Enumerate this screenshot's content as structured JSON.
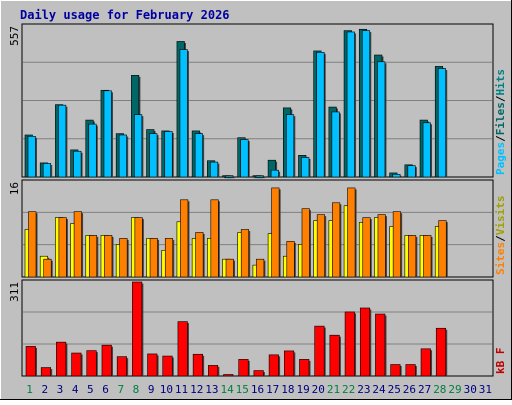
{
  "title": "Daily usage for February 2026",
  "colors": {
    "frame_bg": "#c0c0c0",
    "plot_bg": "#c0c0c0",
    "title_text": "#0000a0",
    "hits": "#00cccc",
    "hits_label": "#008080",
    "files": "#006666",
    "pages": "#00c0ff",
    "visits": "#ffff00",
    "visits_label": "#a0a000",
    "sites": "#ff8000",
    "kbytes": "#ff0000",
    "kbytes_label": "#c00000",
    "weekend_day": "#008040",
    "weekday": "#000080"
  },
  "panel_labels": {
    "top": [
      "Pages",
      "Files",
      "Hits"
    ],
    "middle": [
      "Sites",
      "Visits"
    ],
    "bottom": [
      "kB F"
    ],
    "separator": "/"
  },
  "chart_data": [
    {
      "type": "bar",
      "panel": "hits-files-pages",
      "ymax_label": "557",
      "ylim": [
        0,
        557
      ],
      "categories": [
        "1",
        "2",
        "3",
        "4",
        "5",
        "6",
        "7",
        "8",
        "9",
        "10",
        "11",
        "12",
        "13",
        "14",
        "15",
        "16",
        "17",
        "18",
        "19",
        "20",
        "21",
        "22",
        "23",
        "24",
        "25",
        "26",
        "27",
        "28",
        "29",
        "30",
        "31"
      ],
      "series": [
        {
          "name": "Hits",
          "values": [
            155,
            52,
            267,
            100,
            210,
            320,
            160,
            375,
            175,
            170,
            500,
            170,
            60,
            5,
            145,
            5,
            62,
            255,
            80,
            465,
            258,
            540,
            545,
            450,
            15,
            45,
            210,
            408,
            0,
            0,
            0
          ]
        },
        {
          "name": "Files",
          "values": [
            155,
            52,
            267,
            100,
            210,
            320,
            160,
            375,
            175,
            170,
            500,
            170,
            60,
            5,
            145,
            5,
            62,
            255,
            80,
            465,
            258,
            540,
            545,
            450,
            15,
            45,
            210,
            408,
            0,
            0,
            0
          ]
        },
        {
          "name": "Pages",
          "values": [
            150,
            50,
            265,
            95,
            195,
            318,
            155,
            230,
            160,
            168,
            470,
            160,
            55,
            5,
            138,
            5,
            25,
            230,
            72,
            460,
            240,
            535,
            540,
            425,
            10,
            42,
            200,
            400,
            0,
            0,
            0
          ]
        }
      ]
    },
    {
      "type": "bar",
      "panel": "visits-sites",
      "ymax_label": "16",
      "ylim": [
        0,
        16
      ],
      "categories": [
        "1",
        "2",
        "3",
        "4",
        "5",
        "6",
        "7",
        "8",
        "9",
        "10",
        "11",
        "12",
        "13",
        "14",
        "15",
        "16",
        "17",
        "18",
        "19",
        "20",
        "21",
        "22",
        "23",
        "24",
        "25",
        "26",
        "27",
        "28",
        "29",
        "30",
        "31"
      ],
      "series": [
        {
          "name": "Visits",
          "values": [
            8,
            3.5,
            10,
            9,
            7,
            7,
            5.5,
            10,
            6.5,
            4.5,
            9.3,
            6.5,
            6.5,
            3,
            7.5,
            2,
            7.3,
            3.5,
            5.5,
            9.5,
            9.5,
            12,
            9.2,
            10,
            8.5,
            7,
            7,
            8.5,
            0,
            0,
            0
          ]
        },
        {
          "name": "Sites",
          "values": [
            11,
            3,
            10,
            11,
            7,
            7,
            6.5,
            10,
            6.5,
            6.5,
            13,
            7.5,
            13,
            3,
            8,
            3,
            15,
            6,
            11.5,
            10.5,
            12.5,
            15,
            10,
            10.5,
            11,
            7,
            7,
            9.5,
            0,
            0,
            0
          ]
        }
      ]
    },
    {
      "type": "bar",
      "panel": "kbytes",
      "ymax_label": "311",
      "ylim": [
        0,
        311
      ],
      "categories": [
        "1",
        "2",
        "3",
        "4",
        "5",
        "6",
        "7",
        "8",
        "9",
        "10",
        "11",
        "12",
        "13",
        "14",
        "15",
        "16",
        "17",
        "18",
        "19",
        "20",
        "21",
        "22",
        "23",
        "24",
        "25",
        "26",
        "27",
        "28",
        "29",
        "30",
        "31"
      ],
      "series": [
        {
          "name": "kB F",
          "values": [
            98,
            28,
            112,
            76,
            84,
            102,
            64,
            311,
            73,
            66,
            180,
            72,
            35,
            5,
            55,
            18,
            70,
            83,
            55,
            165,
            135,
            212,
            225,
            205,
            38,
            38,
            90,
            158,
            0,
            0,
            0
          ]
        }
      ]
    }
  ],
  "x_axis": {
    "labels": [
      "1",
      "2",
      "3",
      "4",
      "5",
      "6",
      "7",
      "8",
      "9",
      "10",
      "11",
      "12",
      "13",
      "14",
      "15",
      "16",
      "17",
      "18",
      "19",
      "20",
      "21",
      "22",
      "23",
      "24",
      "25",
      "26",
      "27",
      "28",
      "29",
      "30",
      "31"
    ],
    "weekend": [
      1,
      7,
      8,
      14,
      15,
      21,
      22,
      28,
      29
    ]
  }
}
